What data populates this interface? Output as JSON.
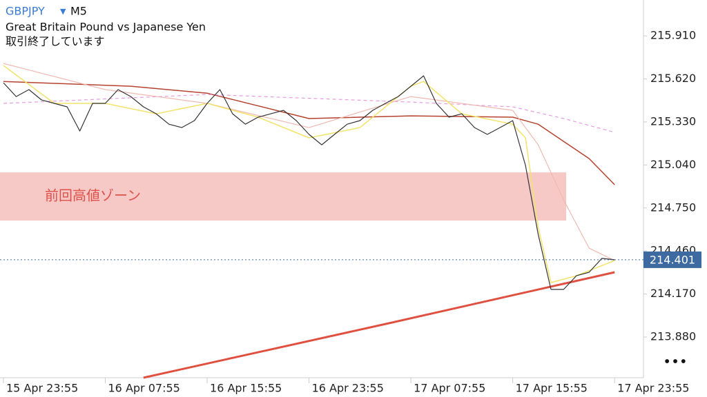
{
  "header": {
    "symbol": "GBPJPY",
    "timeframe": "M5",
    "description": "Great Britain Pound vs Japanese Yen",
    "status": "取引終了しています"
  },
  "chart_data": {
    "type": "line",
    "xlim": [
      -0.27,
      50.16
    ],
    "xticks": [
      {
        "value": 0,
        "label": "15 Apr 23:55"
      },
      {
        "value": 8,
        "label": "16 Apr 07:55"
      },
      {
        "value": 16,
        "label": "16 Apr 15:55"
      },
      {
        "value": 24,
        "label": "16 Apr 23:55"
      },
      {
        "value": 32,
        "label": "17 Apr 07:55"
      },
      {
        "value": 40,
        "label": "17 Apr 15:55"
      },
      {
        "value": 48,
        "label": "17 Apr 23:55"
      }
    ],
    "ylim": [
      213.606,
      216.152
    ],
    "yticks": [
      {
        "value": 215.91,
        "label": "215.910"
      },
      {
        "value": 215.62,
        "label": "215.620"
      },
      {
        "value": 215.33,
        "label": "215.330"
      },
      {
        "value": 215.04,
        "label": "215.040"
      },
      {
        "value": 214.75,
        "label": "214.750"
      },
      {
        "value": 214.46,
        "label": "214.460"
      },
      {
        "value": 214.17,
        "label": "214.170"
      },
      {
        "value": 213.88,
        "label": "213.880"
      }
    ],
    "current_price": 214.401,
    "zone": {
      "label": "前回高値ゾーン",
      "top": 214.99,
      "bottom": 214.665,
      "x_end": 44.2,
      "color": "#f7c9c6",
      "label_color": "#e0504a"
    },
    "series": [
      {
        "color": "#e05040",
        "width": 3,
        "x": [
          11,
          30,
          48
        ],
        "values": [
          213.606,
          213.968,
          214.317
        ]
      },
      {
        "color": "#b5412e",
        "width": 1.5,
        "x": [
          0,
          10,
          16,
          24,
          32,
          40,
          42,
          46,
          48
        ],
        "values": [
          215.603,
          215.571,
          215.524,
          215.353,
          215.371,
          215.362,
          215.315,
          215.083,
          214.907
        ]
      },
      {
        "color": "#e89be0",
        "width": 1.2,
        "dashed": true,
        "x": [
          0,
          16,
          32,
          40,
          44,
          48
        ],
        "values": [
          215.455,
          215.515,
          215.464,
          215.432,
          215.353,
          215.26
        ]
      },
      {
        "color": "#f0b8b0",
        "width": 1.2,
        "x": [
          0,
          8,
          16,
          24,
          32,
          40,
          42,
          44,
          46,
          48
        ],
        "values": [
          215.724,
          215.548,
          215.455,
          215.292,
          215.501,
          215.408,
          215.176,
          214.804,
          214.479,
          214.396
        ]
      },
      {
        "color": "#f2e36a",
        "width": 1.5,
        "x": [
          0,
          4,
          8,
          12,
          16,
          20,
          24,
          28,
          32,
          33,
          36,
          40,
          41,
          42,
          43,
          45,
          48
        ],
        "values": [
          215.71,
          215.455,
          215.455,
          215.385,
          215.455,
          215.362,
          215.223,
          215.292,
          215.571,
          215.603,
          215.385,
          215.315,
          215.223,
          214.619,
          214.247,
          214.293,
          214.396
        ]
      },
      {
        "color": "#333333",
        "width": 1.2,
        "x": [
          0,
          1,
          2,
          3,
          4,
          5,
          6,
          7,
          8,
          9,
          10,
          11,
          12,
          13,
          14,
          15,
          16,
          17,
          18,
          19,
          20,
          21,
          22,
          23,
          24,
          25,
          26,
          27,
          28,
          29,
          30,
          31,
          32,
          33,
          34,
          35,
          36,
          37,
          38,
          39,
          40,
          41,
          42,
          43,
          44,
          45,
          46,
          47,
          48
        ],
        "values": [
          215.594,
          215.501,
          215.548,
          215.478,
          215.455,
          215.432,
          215.269,
          215.455,
          215.455,
          215.548,
          215.501,
          215.432,
          215.385,
          215.315,
          215.292,
          215.339,
          215.455,
          215.548,
          215.385,
          215.315,
          215.362,
          215.385,
          215.408,
          215.339,
          215.246,
          215.176,
          215.246,
          215.315,
          215.339,
          215.408,
          215.455,
          215.501,
          215.571,
          215.641,
          215.455,
          215.362,
          215.385,
          215.292,
          215.246,
          215.292,
          215.339,
          215.037,
          214.572,
          214.201,
          214.201,
          214.293,
          214.317,
          214.41,
          214.401
        ]
      }
    ]
  }
}
